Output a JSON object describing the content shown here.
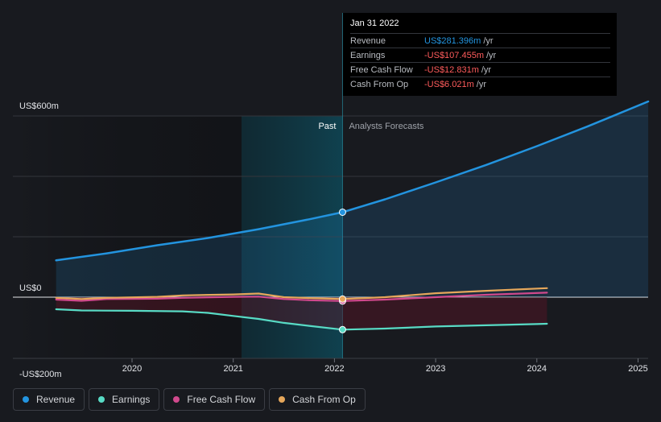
{
  "chart_data": {
    "type": "line",
    "y_axis": {
      "top_label": "US$600m",
      "zero_label": "US$0",
      "bottom_label": "-US$200m",
      "ylim": [
        -200,
        600
      ]
    },
    "x_axis": {
      "tick_labels": [
        "2020",
        "2021",
        "2022",
        "2023",
        "2024",
        "2025"
      ],
      "xlim": [
        2019.0,
        2025.1
      ]
    },
    "divider": {
      "x": 2022.08,
      "past_label": "Past",
      "forecast_label": "Analysts Forecasts"
    },
    "series": [
      {
        "name": "Revenue",
        "color": "#2394df",
        "points": [
          [
            2019.25,
            122
          ],
          [
            2019.75,
            145
          ],
          [
            2020.25,
            172
          ],
          [
            2020.75,
            196
          ],
          [
            2021.25,
            225
          ],
          [
            2021.75,
            258
          ],
          [
            2022.08,
            281.396
          ],
          [
            2022.5,
            324
          ],
          [
            2023.0,
            380
          ],
          [
            2023.5,
            438
          ],
          [
            2024.0,
            500
          ],
          [
            2024.5,
            565
          ],
          [
            2025.1,
            648
          ]
        ]
      },
      {
        "name": "Earnings",
        "color": "#58dbc5",
        "points": [
          [
            2019.25,
            -40
          ],
          [
            2019.5,
            -44
          ],
          [
            2020.0,
            -45
          ],
          [
            2020.5,
            -47
          ],
          [
            2020.75,
            -52
          ],
          [
            2021.0,
            -62
          ],
          [
            2021.25,
            -72
          ],
          [
            2021.5,
            -85
          ],
          [
            2021.75,
            -95
          ],
          [
            2022.08,
            -107.455
          ],
          [
            2022.5,
            -104
          ],
          [
            2023.0,
            -97
          ],
          [
            2023.5,
            -93
          ],
          [
            2024.0,
            -89
          ],
          [
            2024.1,
            -88
          ]
        ]
      },
      {
        "name": "Free Cash Flow",
        "color": "#d1498d",
        "points": [
          [
            2019.25,
            -8
          ],
          [
            2019.5,
            -12
          ],
          [
            2019.75,
            -6
          ],
          [
            2020.25,
            -5
          ],
          [
            2020.5,
            -2
          ],
          [
            2021.0,
            1
          ],
          [
            2021.25,
            2
          ],
          [
            2021.5,
            -6
          ],
          [
            2021.75,
            -10
          ],
          [
            2022.08,
            -12.831
          ],
          [
            2022.5,
            -8
          ],
          [
            2023.0,
            0
          ],
          [
            2023.5,
            8
          ],
          [
            2024.1,
            15
          ]
        ]
      },
      {
        "name": "Cash From Op",
        "color": "#e6a75b",
        "points": [
          [
            2019.25,
            -2
          ],
          [
            2019.5,
            -6
          ],
          [
            2019.75,
            -2
          ],
          [
            2020.25,
            1
          ],
          [
            2020.5,
            6
          ],
          [
            2021.0,
            9
          ],
          [
            2021.25,
            12
          ],
          [
            2021.5,
            0
          ],
          [
            2021.75,
            -3
          ],
          [
            2022.08,
            -6.021
          ],
          [
            2022.5,
            0
          ],
          [
            2023.0,
            13
          ],
          [
            2023.5,
            21
          ],
          [
            2024.1,
            30
          ]
        ]
      }
    ]
  },
  "tooltip": {
    "date": "Jan 31 2022",
    "rows": [
      {
        "label": "Revenue",
        "value": "US$281.396m",
        "unit": "/yr",
        "color": "#2394df"
      },
      {
        "label": "Earnings",
        "value": "-US$107.455m",
        "unit": "/yr",
        "color": "#ff5c5c"
      },
      {
        "label": "Free Cash Flow",
        "value": "-US$12.831m",
        "unit": "/yr",
        "color": "#ff5c5c"
      },
      {
        "label": "Cash From Op",
        "value": "-US$6.021m",
        "unit": "/yr",
        "color": "#ff5c5c"
      }
    ]
  },
  "legend": [
    {
      "label": "Revenue",
      "color": "#2394df"
    },
    {
      "label": "Earnings",
      "color": "#58dbc5"
    },
    {
      "label": "Free Cash Flow",
      "color": "#d1498d"
    },
    {
      "label": "Cash From Op",
      "color": "#e6a75b"
    }
  ]
}
